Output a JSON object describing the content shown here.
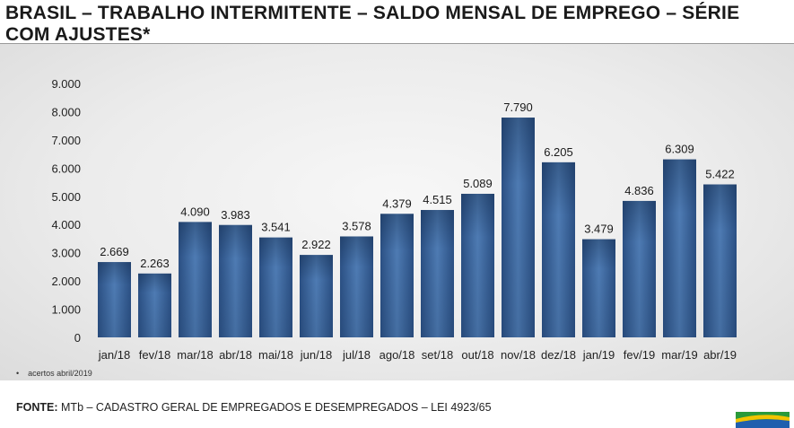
{
  "title": "BRASIL – TRABALHO INTERMITENTE – SALDO MENSAL DE EMPREGO – SÉRIE COM AJUSTES*",
  "footnote": "acertos abril/2019",
  "source_label": "FONTE:",
  "source_text": "MTb – CADASTRO GERAL DE EMPREGADOS E DESEMPREGADOS – LEI 4923/65",
  "colors": {
    "bar_top": "#1f3d66",
    "bar_mid": "#4e7bb3",
    "bar_bottom": "#2b5084"
  },
  "chart_data": {
    "type": "bar",
    "categories": [
      "jan/18",
      "fev/18",
      "mar/18",
      "abr/18",
      "mai/18",
      "jun/18",
      "jul/18",
      "ago/18",
      "set/18",
      "out/18",
      "nov/18",
      "dez/18",
      "jan/19",
      "fev/19",
      "mar/19",
      "abr/19"
    ],
    "values": [
      2669,
      2263,
      4090,
      3983,
      3541,
      2922,
      3578,
      4379,
      4515,
      5089,
      7790,
      6205,
      3479,
      4836,
      6309,
      5422
    ],
    "value_labels": [
      "2.669",
      "2.263",
      "4.090",
      "3.983",
      "3.541",
      "2.922",
      "3.578",
      "4.379",
      "4.515",
      "5.089",
      "7.790",
      "6.205",
      "3.479",
      "4.836",
      "6.309",
      "5.422"
    ],
    "ylim": [
      0,
      9000
    ],
    "yticks": [
      0,
      1000,
      2000,
      3000,
      4000,
      5000,
      6000,
      7000,
      8000,
      9000
    ],
    "ytick_labels": [
      "0",
      "1.000",
      "2.000",
      "3.000",
      "4.000",
      "5.000",
      "6.000",
      "7.000",
      "8.000",
      "9.000"
    ],
    "grid": false,
    "legend": "none"
  }
}
